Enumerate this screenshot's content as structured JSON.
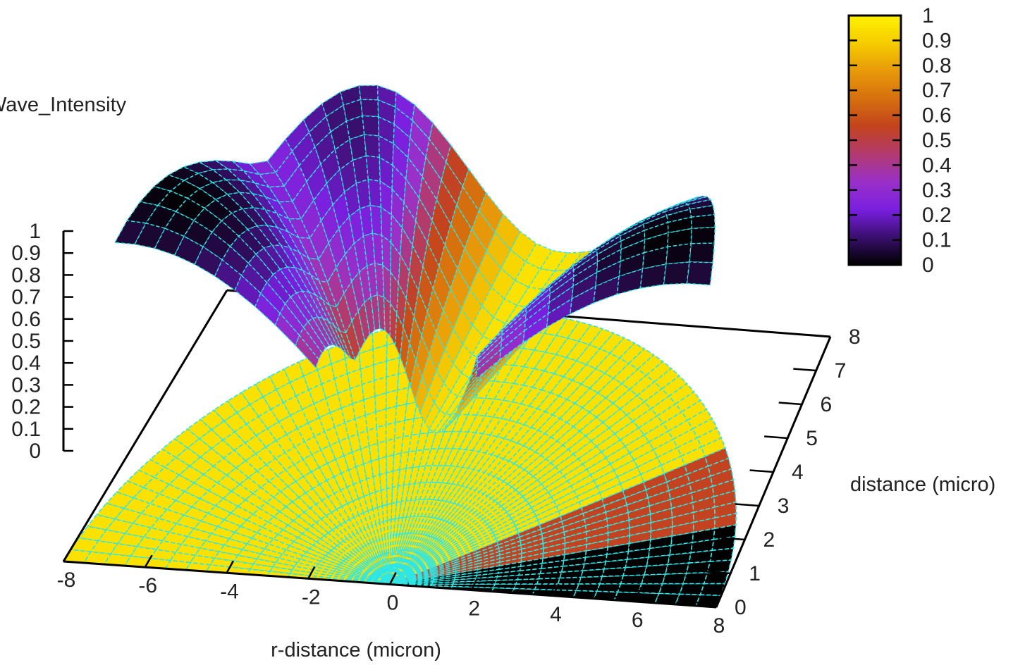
{
  "chart_data": {
    "type": "surface3d",
    "title": "",
    "zlabel": "Wave_Intensity",
    "xlabel": "r-distance (micron)",
    "ylabel": "distance (micro)",
    "x_ticks": [
      "-8",
      "-6",
      "-4",
      "-2",
      "0",
      "2",
      "4",
      "6",
      "8"
    ],
    "y_ticks": [
      "0",
      "1",
      "2",
      "3",
      "4",
      "5",
      "6",
      "7",
      "8"
    ],
    "z_ticks": [
      "0",
      "0.1",
      "0.2",
      "0.3",
      "0.4",
      "0.5",
      "0.6",
      "0.7",
      "0.8",
      "0.9",
      "1"
    ],
    "xlim": [
      -8,
      8
    ],
    "ylim": [
      0,
      8
    ],
    "zlim": [
      0,
      1
    ],
    "colorbar": {
      "ticks": [
        "0",
        "0.1",
        "0.2",
        "0.3",
        "0.4",
        "0.5",
        "0.6",
        "0.7",
        "0.8",
        "0.9",
        "1"
      ],
      "range": [
        0,
        1
      ],
      "palette": [
        "#000000",
        "#3a0f6e",
        "#7a1fe0",
        "#9a30c8",
        "#b23a70",
        "#c4431c",
        "#d6700e",
        "#e89a0a",
        "#f5cc00",
        "#fff200"
      ]
    },
    "mesh_color": "#2ee6e6",
    "base_polar": {
      "description_free": true,
      "radius": 8,
      "sectors": [
        {
          "theta_from": 0,
          "theta_to": 18,
          "value": 0.0
        },
        {
          "theta_from": 18,
          "theta_to": 36,
          "value": 0.55
        },
        {
          "theta_from": 36,
          "theta_to": 180,
          "value": 0.95
        }
      ]
    },
    "surface_ridges": {
      "radius": 7.5,
      "peaks_deg": [
        20,
        115,
        160
      ],
      "peak_value": 1.0,
      "valley_deg": 90,
      "valley_value": 0.1
    }
  }
}
